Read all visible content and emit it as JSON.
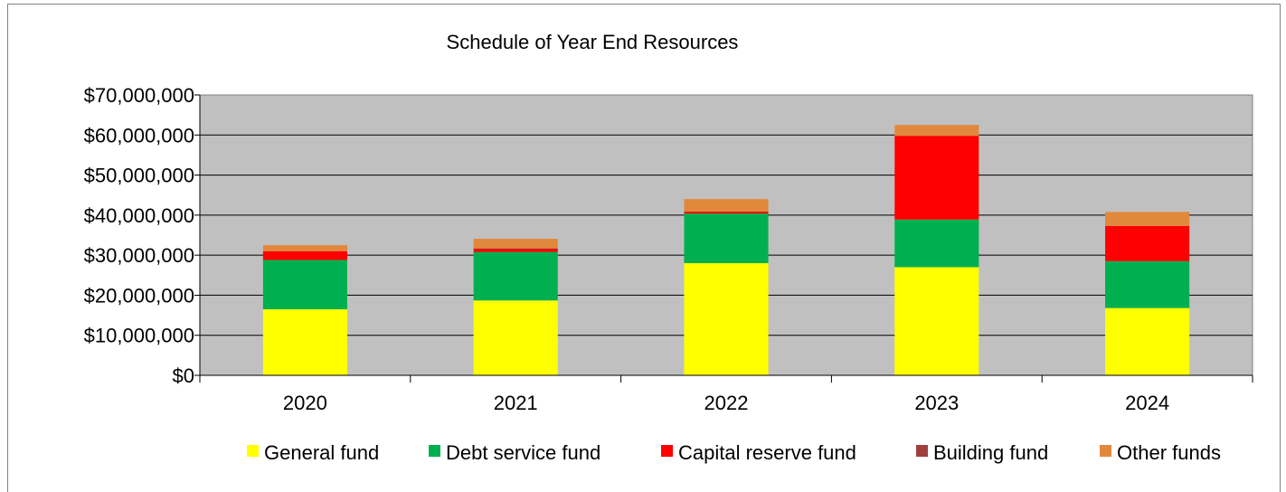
{
  "chart_data": {
    "type": "bar",
    "stacked": true,
    "title": "Schedule of Year End Resources",
    "xlabel": "",
    "ylabel": "",
    "categories": [
      "2020",
      "2021",
      "2022",
      "2023",
      "2024"
    ],
    "ylim": [
      0,
      70000000
    ],
    "yticks": [
      0,
      10000000,
      20000000,
      30000000,
      40000000,
      50000000,
      60000000,
      70000000
    ],
    "ytick_labels": [
      "$0",
      "$10,000,000",
      "$20,000,000",
      "$30,000,000",
      "$40,000,000",
      "$50,000,000",
      "$60,000,000",
      "$70,000,000"
    ],
    "grid": true,
    "plot_background": "#c0c0c0",
    "legend_position": "bottom",
    "series": [
      {
        "name": "General fund",
        "color": "#ffff00",
        "values": [
          16500000,
          18700000,
          28000000,
          27000000,
          16800000
        ]
      },
      {
        "name": "Debt service fund",
        "color": "#00b050",
        "values": [
          12300000,
          12100000,
          12400000,
          11900000,
          11700000
        ]
      },
      {
        "name": "Capital reserve fund",
        "color": "#ff0000",
        "values": [
          2200000,
          700000,
          500000,
          20900000,
          8800000
        ]
      },
      {
        "name": "Building fund",
        "color": "#a0403c",
        "values": [
          0,
          200000,
          0,
          0,
          0
        ]
      },
      {
        "name": "Other funds",
        "color": "#e2883c",
        "values": [
          1500000,
          2400000,
          3100000,
          2700000,
          3500000
        ]
      }
    ]
  }
}
